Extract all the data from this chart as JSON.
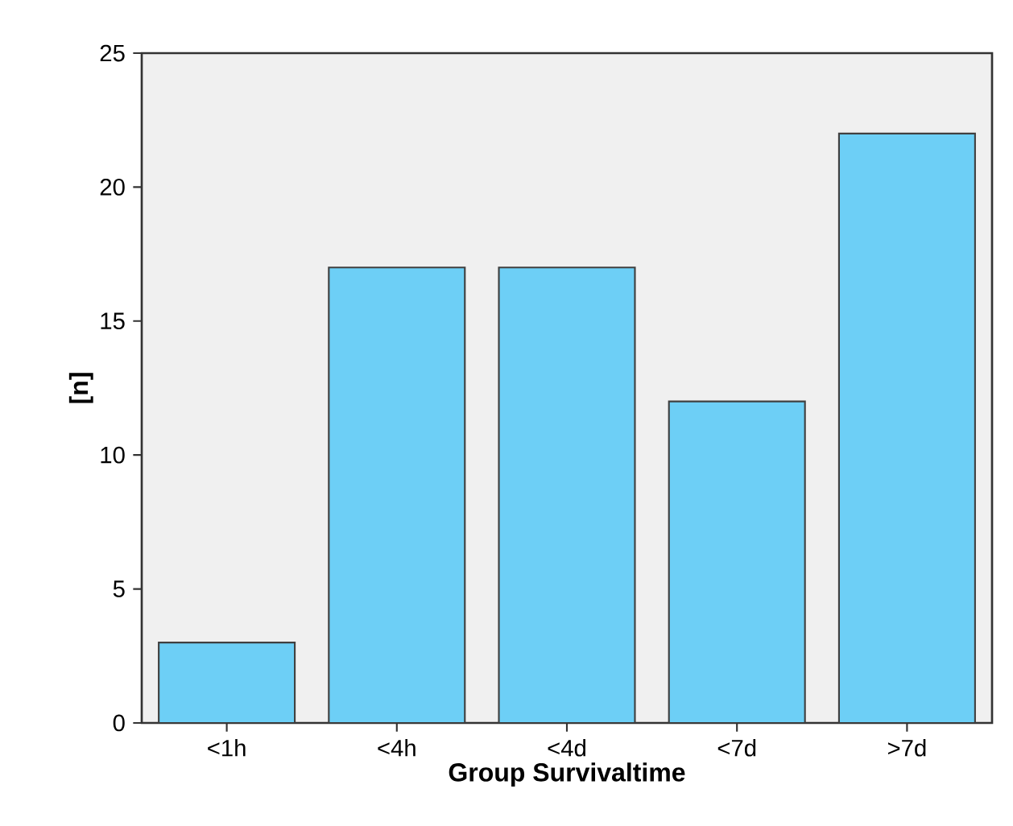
{
  "chart_data": {
    "type": "bar",
    "xlabel": "Group  Survivaltime",
    "ylabel": "[n]",
    "categories": [
      "<1h",
      "<4h",
      "<4d",
      "<7d",
      ">7d"
    ],
    "values": [
      3,
      17,
      17,
      12,
      22
    ],
    "color": "#6dcff6",
    "ylim": [
      0,
      25
    ],
    "yticks": [
      0,
      5,
      10,
      15,
      20,
      25
    ]
  }
}
